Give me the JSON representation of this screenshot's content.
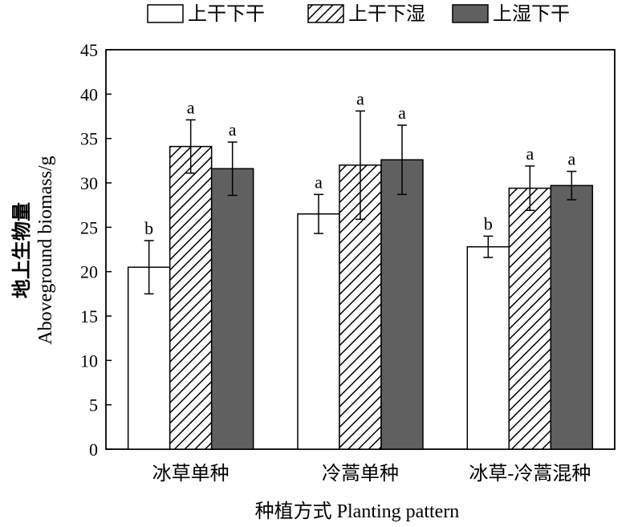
{
  "chart_data": {
    "type": "bar",
    "title": "",
    "xlabel": "种植方式 Planting pattern",
    "ylabel_cn": "地上生物量",
    "ylabel_en": "Aboveground biomass/g",
    "categories": [
      "冰草单种",
      "冷蒿单种",
      "冰草-冷蒿混种"
    ],
    "ylim": [
      0,
      45
    ],
    "yticks": [
      0,
      5,
      10,
      15,
      20,
      25,
      30,
      35,
      40,
      45
    ],
    "grid": false,
    "legend_position": "top",
    "series": [
      {
        "name": "上干下干",
        "fill": "white",
        "color": "#ffffff",
        "values": [
          20.5,
          26.5,
          22.8
        ],
        "errors": [
          3.0,
          2.2,
          1.2
        ],
        "sig": [
          "b",
          "a",
          "b"
        ]
      },
      {
        "name": "上干下湿",
        "fill": "hatch",
        "color": "#000000",
        "values": [
          34.1,
          32.0,
          29.4
        ],
        "errors": [
          3.0,
          6.1,
          2.5
        ],
        "sig": [
          "a",
          "a",
          "a"
        ]
      },
      {
        "name": "上湿下干",
        "fill": "solid",
        "color": "#606060",
        "values": [
          31.6,
          32.6,
          29.7
        ],
        "errors": [
          3.0,
          3.9,
          1.6
        ],
        "sig": [
          "a",
          "a",
          "a"
        ]
      }
    ]
  }
}
